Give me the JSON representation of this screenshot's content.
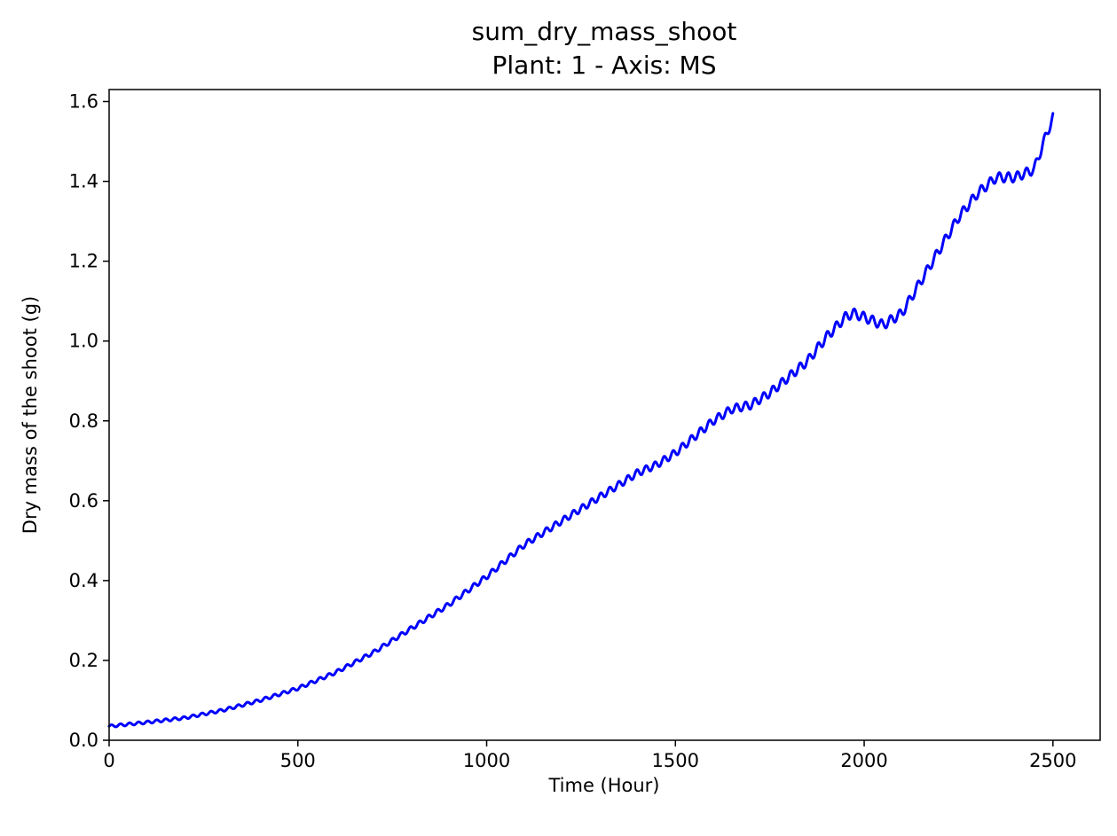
{
  "chart_data": {
    "type": "line",
    "title": "sum_dry_mass_shoot",
    "subtitle": "Plant: 1 - Axis: MS",
    "xlabel": "Time (Hour)",
    "ylabel": "Dry mass of the shoot (g)",
    "xlim": [
      0,
      2625
    ],
    "ylim": [
      0,
      1.63
    ],
    "xticks": [
      0,
      500,
      1000,
      1500,
      2000,
      2500
    ],
    "xtick_labels": [
      "0",
      "500",
      "1000",
      "1500",
      "2000",
      "2500"
    ],
    "yticks": [
      0.0,
      0.2,
      0.4,
      0.6,
      0.8,
      1.0,
      1.2,
      1.4,
      1.6
    ],
    "ytick_labels": [
      "0.0",
      "0.2",
      "0.4",
      "0.6",
      "0.8",
      "1.0",
      "1.2",
      "1.4",
      "1.6"
    ],
    "grid": false,
    "series": [
      {
        "color": "#0000ff",
        "line_width": 3,
        "x": [
          0,
          100,
          200,
          300,
          400,
          500,
          600,
          700,
          800,
          900,
          1000,
          1100,
          1200,
          1300,
          1400,
          1450,
          1500,
          1600,
          1650,
          1700,
          1750,
          1800,
          1850,
          1900,
          1950,
          1970,
          2000,
          2050,
          2100,
          2150,
          2200,
          2250,
          2300,
          2350,
          2400,
          2450,
          2480,
          2500
        ],
        "y": [
          0.035,
          0.045,
          0.056,
          0.075,
          0.1,
          0.13,
          0.17,
          0.22,
          0.28,
          0.34,
          0.41,
          0.49,
          0.55,
          0.61,
          0.67,
          0.69,
          0.72,
          0.8,
          0.83,
          0.84,
          0.87,
          0.91,
          0.95,
          1.01,
          1.06,
          1.07,
          1.06,
          1.04,
          1.07,
          1.15,
          1.23,
          1.31,
          1.37,
          1.41,
          1.41,
          1.43,
          1.51,
          1.56
        ]
      }
    ]
  }
}
